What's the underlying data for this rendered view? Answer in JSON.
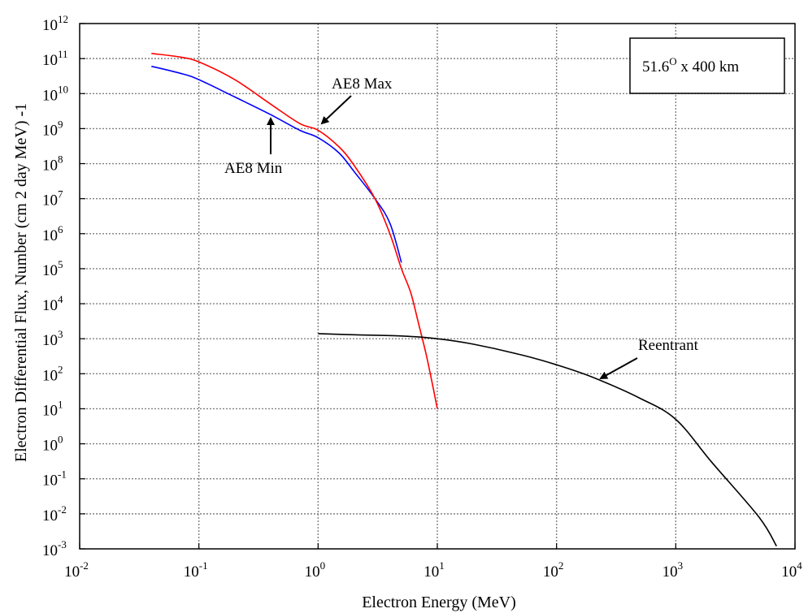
{
  "chart_data": {
    "type": "line",
    "title": "",
    "xlabel": "Electron Energy (MeV)",
    "ylabel": "Electron Differential Flux, Number (cm 2 day MeV) -1",
    "xscale": "log",
    "yscale": "log",
    "xlim": [
      0.01,
      10000
    ],
    "ylim": [
      0.001,
      1000000000000
    ],
    "grid": true,
    "x_ticks": [
      {
        "value": 0.01,
        "base": "10",
        "exp": "-2"
      },
      {
        "value": 0.1,
        "base": "10",
        "exp": "-1"
      },
      {
        "value": 1,
        "base": "10",
        "exp": "0"
      },
      {
        "value": 10,
        "base": "10",
        "exp": "1"
      },
      {
        "value": 100,
        "base": "10",
        "exp": "2"
      },
      {
        "value": 1000,
        "base": "10",
        "exp": "3"
      },
      {
        "value": 10000,
        "base": "10",
        "exp": "4"
      }
    ],
    "y_ticks": [
      {
        "value": 0.001,
        "base": "10",
        "exp": "-3"
      },
      {
        "value": 0.01,
        "base": "10",
        "exp": "-2"
      },
      {
        "value": 0.1,
        "base": "10",
        "exp": "-1"
      },
      {
        "value": 1,
        "base": "10",
        "exp": "0"
      },
      {
        "value": 10,
        "base": "10",
        "exp": "1"
      },
      {
        "value": 100,
        "base": "10",
        "exp": "2"
      },
      {
        "value": 1000,
        "base": "10",
        "exp": "3"
      },
      {
        "value": 10000,
        "base": "10",
        "exp": "4"
      },
      {
        "value": 100000,
        "base": "10",
        "exp": "5"
      },
      {
        "value": 1000000,
        "base": "10",
        "exp": "6"
      },
      {
        "value": 10000000,
        "base": "10",
        "exp": "7"
      },
      {
        "value": 100000000,
        "base": "10",
        "exp": "8"
      },
      {
        "value": 1000000000,
        "base": "10",
        "exp": "9"
      },
      {
        "value": 10000000000,
        "base": "10",
        "exp": "10"
      },
      {
        "value": 100000000000,
        "base": "10",
        "exp": "11"
      },
      {
        "value": 1000000000000,
        "base": "10",
        "exp": "12"
      }
    ],
    "series": [
      {
        "name": "AE8 Max",
        "color": "#ff0000",
        "x": [
          0.04,
          0.07,
          0.1,
          0.2,
          0.4,
          0.7,
          1,
          1.5,
          2,
          3,
          4,
          5,
          6,
          7,
          8,
          9,
          10
        ],
        "y": [
          140000000000,
          110000000000,
          80000000000,
          25000000000,
          5000000000,
          1400000000,
          900000000,
          300000000,
          90000000,
          10000000,
          1000000,
          100000,
          20000,
          2500,
          400,
          60,
          10
        ]
      },
      {
        "name": "AE8 Min",
        "color": "#0000ff",
        "x": [
          0.04,
          0.07,
          0.1,
          0.2,
          0.4,
          0.7,
          1,
          1.5,
          2,
          3,
          4,
          5
        ],
        "y": [
          60000000000,
          38000000000,
          25000000000,
          8000000000,
          2500000000,
          900000000,
          550000000,
          200000000,
          60000000,
          10000000,
          2000000,
          150000
        ]
      },
      {
        "name": "Reentrant",
        "color": "#000000",
        "x": [
          1,
          2,
          5,
          10,
          20,
          50,
          100,
          200,
          500,
          1000,
          2000,
          5000,
          7000
        ],
        "y": [
          1400,
          1300,
          1200,
          1000,
          700,
          350,
          180,
          80,
          20,
          5,
          0.3,
          0.008,
          0.0012
        ]
      }
    ],
    "annotations": [
      {
        "text": "AE8 Max",
        "x": 1,
        "y": 1400000000
      },
      {
        "text": "AE8 Min",
        "x": 0.4,
        "y": 2500000000
      },
      {
        "text": "Reentrant",
        "x": 300,
        "y": 70
      }
    ],
    "legend_box": {
      "base": "51.6",
      "sup": "O",
      "rest": " x 400 km",
      "placement": "top-right"
    }
  }
}
